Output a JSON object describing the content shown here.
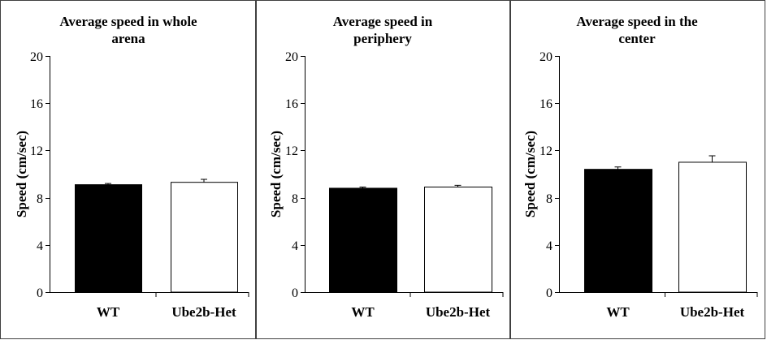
{
  "chart_data": [
    {
      "type": "bar",
      "title_lines": [
        "Average speed in whole",
        "arena"
      ],
      "xlabel": "",
      "ylabel": "Speed (cm/sec)",
      "ylim": [
        0,
        20
      ],
      "yticks": [
        0,
        4,
        8,
        12,
        16,
        20
      ],
      "categories": [
        "WT",
        "Ube2b-Het"
      ],
      "values": [
        9.1,
        9.3
      ],
      "errors": [
        0.1,
        0.25
      ],
      "bar_colors": [
        "#000000",
        "#ffffff"
      ],
      "grid": false
    },
    {
      "type": "bar",
      "title_lines": [
        "Average speed in",
        "periphery"
      ],
      "xlabel": "",
      "ylabel": "Speed (cm/sec)",
      "ylim": [
        0,
        20
      ],
      "yticks": [
        0,
        4,
        8,
        12,
        16,
        20
      ],
      "categories": [
        "WT",
        "Ube2b-Het"
      ],
      "values": [
        8.8,
        8.9
      ],
      "errors": [
        0.1,
        0.15
      ],
      "bar_colors": [
        "#000000",
        "#ffffff"
      ],
      "grid": false
    },
    {
      "type": "bar",
      "title_lines": [
        "Average speed in the",
        "center"
      ],
      "xlabel": "",
      "ylabel": "Speed (cm/sec)",
      "ylim": [
        0,
        20
      ],
      "yticks": [
        0,
        4,
        8,
        12,
        16,
        20
      ],
      "categories": [
        "WT",
        "Ube2b-Het"
      ],
      "values": [
        10.4,
        11.0
      ],
      "errors": [
        0.2,
        0.55
      ],
      "bar_colors": [
        "#000000",
        "#ffffff"
      ],
      "grid": false
    }
  ]
}
